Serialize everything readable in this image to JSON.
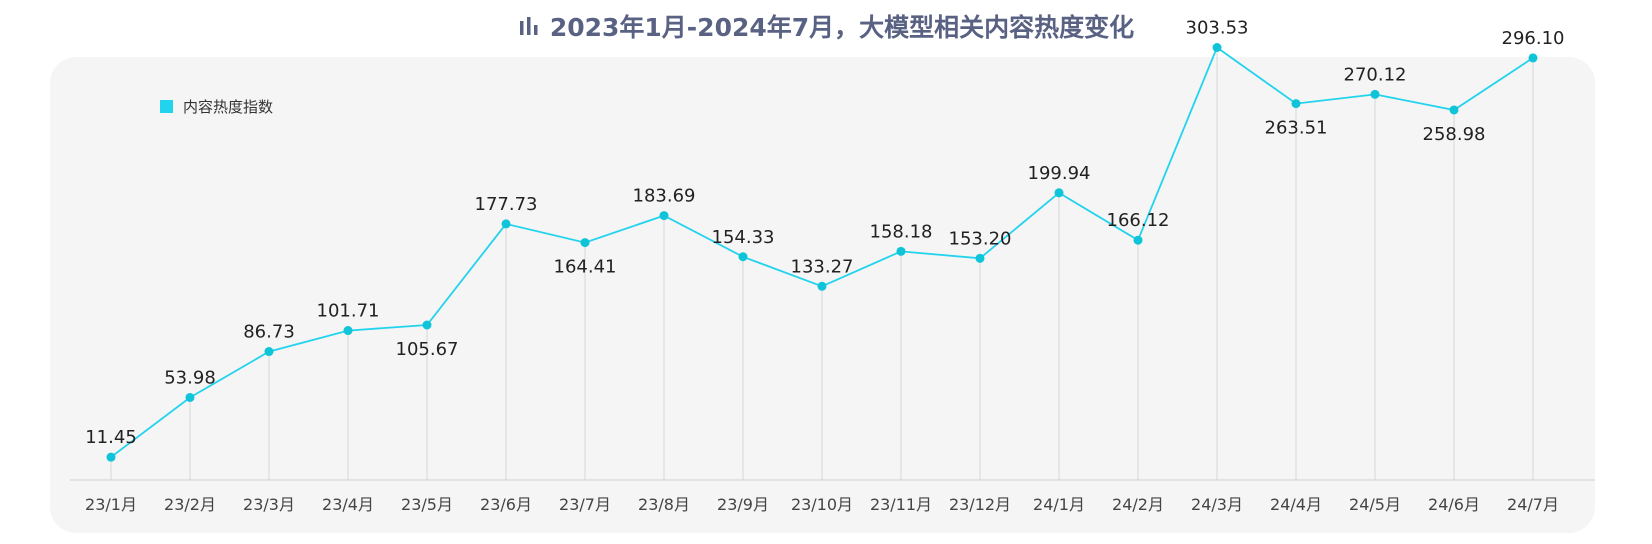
{
  "title": "2023年1月-2024年7月，大模型相关内容热度变化",
  "colors": {
    "line": "#22d3ee",
    "point": "#0fc4d8",
    "title": "#5a6283",
    "panel": "#f5f5f5"
  },
  "icons": {
    "title_icon": "bar-chart-icon"
  },
  "chart_data": {
    "type": "line",
    "title": "2023年1月-2024年7月，大模型相关内容热度变化",
    "xlabel": "",
    "ylabel": "",
    "legend": {
      "position": "top-left"
    },
    "grid": false,
    "categories": [
      "23/1月",
      "23/2月",
      "23/3月",
      "23/4月",
      "23/5月",
      "23/6月",
      "23/7月",
      "23/8月",
      "23/9月",
      "23/10月",
      "23/11月",
      "23/12月",
      "24/1月",
      "24/2月",
      "24/3月",
      "24/4月",
      "24/5月",
      "24/6月",
      "24/7月"
    ],
    "series": [
      {
        "name": "内容热度指数",
        "values": [
          11.45,
          53.98,
          86.73,
          101.71,
          105.67,
          177.73,
          164.41,
          183.69,
          154.33,
          133.27,
          158.18,
          153.2,
          199.94,
          166.12,
          303.53,
          263.51,
          270.12,
          258.98,
          296.1
        ],
        "labels": [
          "11.45",
          "53.98",
          "86.73",
          "101.71",
          "105.67",
          "177.73",
          "164.41",
          "183.69",
          "154.33",
          "133.27",
          "158.18",
          "153.20",
          "199.94",
          "166.12",
          "303.53",
          "263.51",
          "270.12",
          "258.98",
          "296.10"
        ],
        "label_positions": [
          "above",
          "above",
          "above",
          "above",
          "below",
          "above",
          "below",
          "above",
          "above",
          "above",
          "above",
          "above",
          "above",
          "above",
          "above",
          "below",
          "above",
          "below",
          "above"
        ]
      }
    ]
  }
}
